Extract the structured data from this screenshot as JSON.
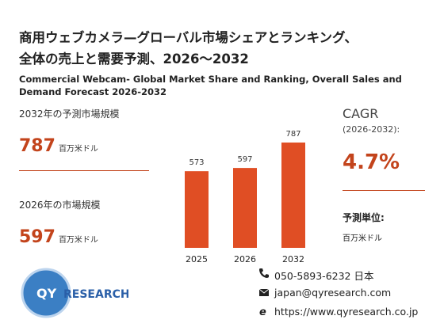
{
  "header": {
    "title_lines": [
      "商用ウェブカメラ—グローバル市場シェアとランキング、",
      "全体の売上と需要予測、2026～2032"
    ],
    "subtitle": "Commercial Webcam- Global Market Share and Ranking, Overall Sales and Demand Forecast 2026-2032"
  },
  "stats": [
    {
      "label": "2032年の予測市場規模",
      "unit": "百万米ドル"
    },
    {
      "label": "2026年の市場規模",
      "unit": "百万米ドル"
    }
  ],
  "chart_data": {
    "type": "bar",
    "categories": [
      "2025",
      "2026",
      "2032"
    ],
    "values": [
      573,
      597,
      787
    ],
    "color": "#e04e24"
  },
  "cagr": {
    "title": "CAGR",
    "period": "(2026-2032):",
    "value": "4.7%",
    "unit_label": "予測単位:",
    "unit": "百万米ドル"
  },
  "logo": {
    "qy": "QY",
    "research": "RESEARCH"
  },
  "contact": {
    "phone": "050-5893-6232 日本",
    "email": "japan@qyresearch.com",
    "web": "https://www.qyresearch.co.jp"
  }
}
